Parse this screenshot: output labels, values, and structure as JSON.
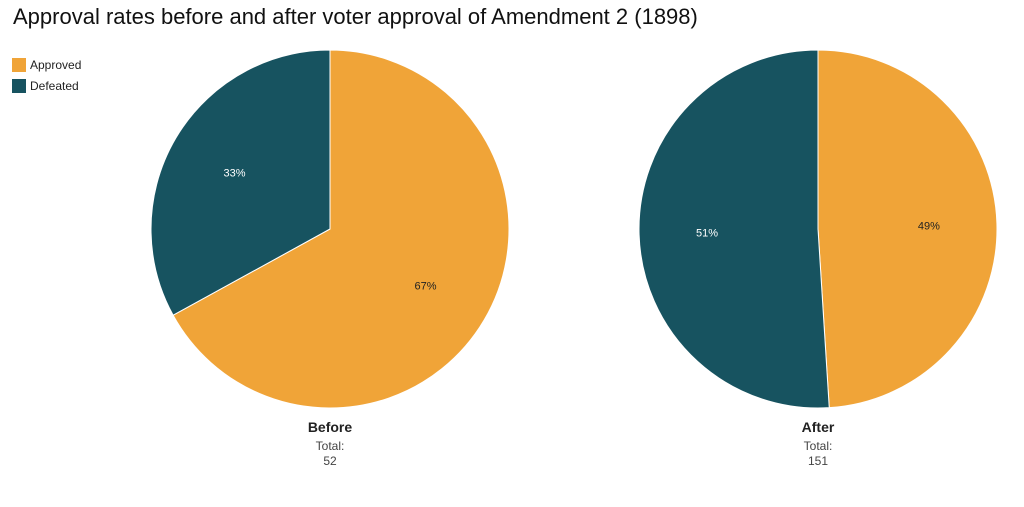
{
  "title": "Approval rates before and after voter approval of Amendment 2 (1898)",
  "legend": {
    "placement": "top-left",
    "items": [
      {
        "label": "Approved",
        "color": "#f0a438"
      },
      {
        "label": "Defeated",
        "color": "#175360"
      }
    ]
  },
  "chart_data": [
    {
      "type": "pie",
      "name": "Before",
      "total_label": "Total:",
      "total": "52",
      "slices": [
        {
          "category": "Approved",
          "value": 67,
          "label": "67%",
          "color": "#f0a438",
          "label_color": "#222222"
        },
        {
          "category": "Defeated",
          "value": 33,
          "label": "33%",
          "color": "#175360",
          "label_color": "#ffffff"
        }
      ]
    },
    {
      "type": "pie",
      "name": "After",
      "total_label": "Total:",
      "total": "151",
      "slices": [
        {
          "category": "Approved",
          "value": 49,
          "label": "49%",
          "color": "#f0a438",
          "label_color": "#222222"
        },
        {
          "category": "Defeated",
          "value": 51,
          "label": "51%",
          "color": "#175360",
          "label_color": "#ffffff"
        }
      ]
    }
  ]
}
